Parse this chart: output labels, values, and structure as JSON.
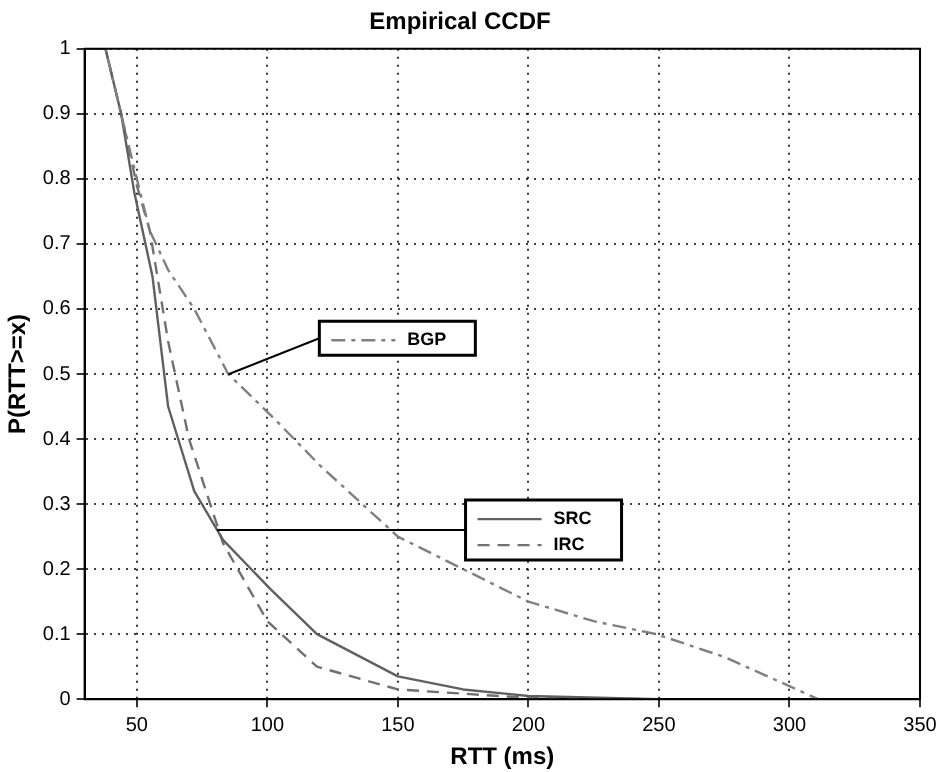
{
  "chart_data": {
    "type": "line",
    "title": "Empirical CCDF",
    "xlabel": "RTT (ms)",
    "ylabel": "P(RTT>=x)",
    "xlim": [
      30,
      350
    ],
    "xticks": [
      50,
      100,
      150,
      200,
      250,
      300,
      350
    ],
    "ylim": [
      0,
      1
    ],
    "yticks": [
      0,
      0.1,
      0.2,
      0.3,
      0.4,
      0.5,
      0.6,
      0.7,
      0.8,
      0.9,
      1
    ],
    "grid": true,
    "legend": "center",
    "marker": "none",
    "series": [
      {
        "name": "BGP",
        "color": "#808080",
        "line_style": "dashdot",
        "x": [
          30,
          38,
          44,
          50,
          55,
          62,
          72,
          85,
          103,
          120,
          150,
          175,
          200,
          225,
          249,
          275,
          300,
          311
        ],
        "values": [
          1,
          1,
          0.9,
          0.8,
          0.72,
          0.66,
          0.6,
          0.5,
          0.43,
          0.36,
          0.25,
          0.2,
          0.15,
          0.12,
          0.1,
          0.065,
          0.02,
          0
        ]
      },
      {
        "name": "SRC",
        "color": "#606060",
        "line_style": "solid",
        "x": [
          30,
          38,
          44,
          49,
          56,
          62,
          72,
          83,
          101,
          119,
          150,
          175,
          200,
          250
        ],
        "values": [
          1,
          1,
          0.9,
          0.78,
          0.65,
          0.45,
          0.32,
          0.245,
          0.17,
          0.1,
          0.035,
          0.015,
          0.005,
          0
        ]
      },
      {
        "name": "IRC",
        "color": "#707070",
        "line_style": "dashed",
        "x": [
          30,
          38,
          44,
          50,
          55,
          62,
          70,
          83,
          100,
          119,
          150,
          200,
          250
        ],
        "values": [
          1,
          1,
          0.9,
          0.79,
          0.72,
          0.55,
          0.4,
          0.24,
          0.12,
          0.05,
          0.015,
          0.002,
          0
        ]
      }
    ]
  }
}
